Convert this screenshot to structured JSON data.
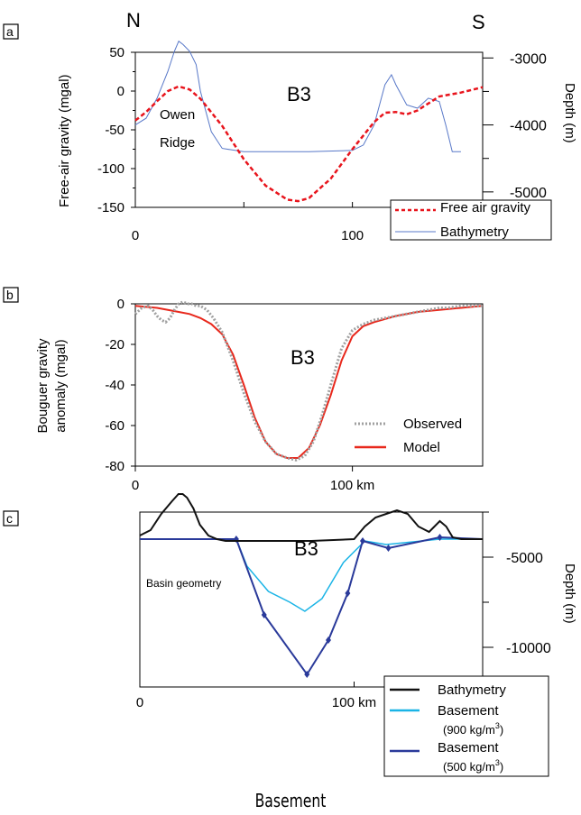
{
  "figure": {
    "north_label": "N",
    "south_label": "S",
    "caption": "Basement"
  },
  "chart_data": [
    {
      "id": "a",
      "panel_label": "a",
      "type": "line",
      "annotation": "B3",
      "ridge_labels": [
        "Owen",
        "Ridge"
      ],
      "ylabel": "Free-air gravity (mgal)",
      "y2label": "Depth (m)",
      "xlim": [
        0,
        160
      ],
      "ylim": [
        -150,
        50
      ],
      "y2lim": [
        -5500,
        -2700
      ],
      "xticks": [
        0,
        100
      ],
      "yticks": [
        50,
        0,
        -50,
        -100,
        -150
      ],
      "y2ticks": [
        -3000,
        -4000,
        -5000
      ],
      "series": [
        {
          "name": "Free air gravity",
          "color": "#e8141c",
          "style": "dashed",
          "axis": "y",
          "x": [
            0,
            5,
            10,
            15,
            20,
            25,
            30,
            40,
            50,
            60,
            70,
            75,
            80,
            90,
            100,
            110,
            115,
            120,
            125,
            130,
            140,
            150,
            160
          ],
          "y": [
            -38,
            -27,
            -13,
            0,
            6,
            2,
            -10,
            -45,
            -88,
            -122,
            -140,
            -142,
            -138,
            -113,
            -75,
            -40,
            -28,
            -27,
            -30,
            -25,
            -7,
            -2,
            5
          ]
        },
        {
          "name": "Bathymetry",
          "color": "#5878c8",
          "style": "solid",
          "axis": "y2",
          "x": [
            0,
            5,
            10,
            15,
            18,
            20,
            22,
            25,
            28,
            30,
            35,
            40,
            50,
            60,
            80,
            100,
            105,
            110,
            115,
            118,
            120,
            125,
            130,
            135,
            140,
            143,
            146,
            150
          ],
          "y": [
            -4000,
            -3900,
            -3600,
            -3200,
            -2900,
            -2750,
            -2800,
            -2900,
            -3100,
            -3500,
            -4100,
            -4350,
            -4400,
            -4400,
            -4400,
            -4380,
            -4300,
            -4000,
            -3400,
            -3250,
            -3400,
            -3700,
            -3750,
            -3600,
            -3650,
            -4000,
            -4400,
            -4400
          ]
        }
      ]
    },
    {
      "id": "b",
      "panel_label": "b",
      "type": "line",
      "annotation": "B3",
      "ylabel_lines": [
        "Bouguer gravity",
        "anomaly (mgal)"
      ],
      "xlim": [
        0,
        160
      ],
      "ylim": [
        -80,
        0
      ],
      "xticks": [
        0,
        100
      ],
      "xtick_labels": [
        "0",
        "100 km"
      ],
      "yticks": [
        0,
        -20,
        -40,
        -60,
        -80
      ],
      "series": [
        {
          "name": "Observed",
          "color": "#a0a0a0",
          "style": "dotted",
          "x": [
            0,
            3,
            6,
            8,
            10,
            12,
            14,
            16,
            18,
            20,
            22,
            24,
            26,
            28,
            30,
            33,
            36,
            40,
            45,
            50,
            55,
            60,
            65,
            70,
            74,
            78,
            82,
            86,
            90,
            95,
            100,
            105,
            110,
            120,
            130,
            140,
            144,
            150,
            155,
            160
          ],
          "y": [
            -5,
            -2,
            -1,
            -3,
            -6,
            -8,
            -9,
            -7,
            -3,
            0,
            1,
            0,
            0,
            -1,
            -1,
            -3,
            -7,
            -14,
            -28,
            -44,
            -58,
            -68,
            -74,
            -76,
            -77,
            -75,
            -68,
            -55,
            -40,
            -22,
            -13,
            -10,
            -8,
            -6,
            -4,
            -2,
            -2,
            -1,
            -1,
            -1
          ]
        },
        {
          "name": "Model",
          "color": "#e8281c",
          "style": "solid",
          "x": [
            0,
            10,
            20,
            25,
            30,
            35,
            40,
            45,
            50,
            55,
            60,
            65,
            70,
            75,
            80,
            85,
            90,
            95,
            100,
            105,
            110,
            120,
            130,
            140,
            150,
            160
          ],
          "y": [
            -1,
            -2,
            -4,
            -5,
            -7,
            -10,
            -15,
            -25,
            -40,
            -56,
            -68,
            -74,
            -76,
            -76,
            -71,
            -60,
            -45,
            -28,
            -16,
            -11,
            -9,
            -6,
            -4,
            -3,
            -2,
            -1
          ]
        }
      ]
    },
    {
      "id": "c",
      "panel_label": "c",
      "type": "line",
      "annotation": "B3",
      "inner_label": "Basin geometry",
      "y2label": "Depth (m)",
      "xlim": [
        0,
        160
      ],
      "ylim_depth": [
        -12500,
        0
      ],
      "xticks": [
        0,
        100
      ],
      "xtick_labels": [
        "0",
        "100 km"
      ],
      "y2ticks": [
        -5000,
        -10000
      ],
      "series": [
        {
          "name": "Bathymetry",
          "color": "#111111",
          "style": "solid",
          "x": [
            0,
            5,
            10,
            15,
            18,
            20,
            22,
            25,
            28,
            32,
            36,
            40,
            50,
            60,
            80,
            100,
            105,
            110,
            115,
            120,
            125,
            130,
            135,
            140,
            143,
            146,
            150,
            160
          ],
          "y": [
            -3800,
            -3500,
            -2600,
            -1900,
            -1500,
            -1500,
            -1700,
            -2300,
            -3200,
            -3800,
            -4000,
            -4100,
            -4100,
            -4100,
            -4100,
            -4000,
            -3300,
            -2800,
            -2600,
            -2400,
            -2600,
            -3300,
            -3600,
            -3000,
            -3300,
            -3900,
            -4000,
            -4000
          ]
        },
        {
          "name": "Basement (900 kg/m3)",
          "legend_lines": [
            "Basement",
            "(900 kg/m",
            "3",
            ")"
          ],
          "color": "#1ab4e6",
          "style": "solid",
          "x": [
            0,
            45,
            50,
            60,
            70,
            77,
            85,
            95,
            105,
            115,
            140,
            160
          ],
          "y": [
            -4000,
            -4000,
            -5500,
            -6900,
            -7500,
            -8000,
            -7300,
            -5300,
            -4100,
            -4300,
            -4000,
            -4000
          ]
        },
        {
          "name": "Basement (500 kg/m3)",
          "legend_lines": [
            "Basement",
            "(500 kg/m",
            "3",
            ")"
          ],
          "color": "#2a3a9a",
          "style": "solid-markers",
          "x": [
            0,
            45,
            58,
            78,
            88,
            97,
            104,
            116,
            140,
            160
          ],
          "y": [
            -4000,
            -4000,
            -8200,
            -11500,
            -9600,
            -7000,
            -4100,
            -4500,
            -3900,
            -4000
          ]
        }
      ]
    }
  ]
}
